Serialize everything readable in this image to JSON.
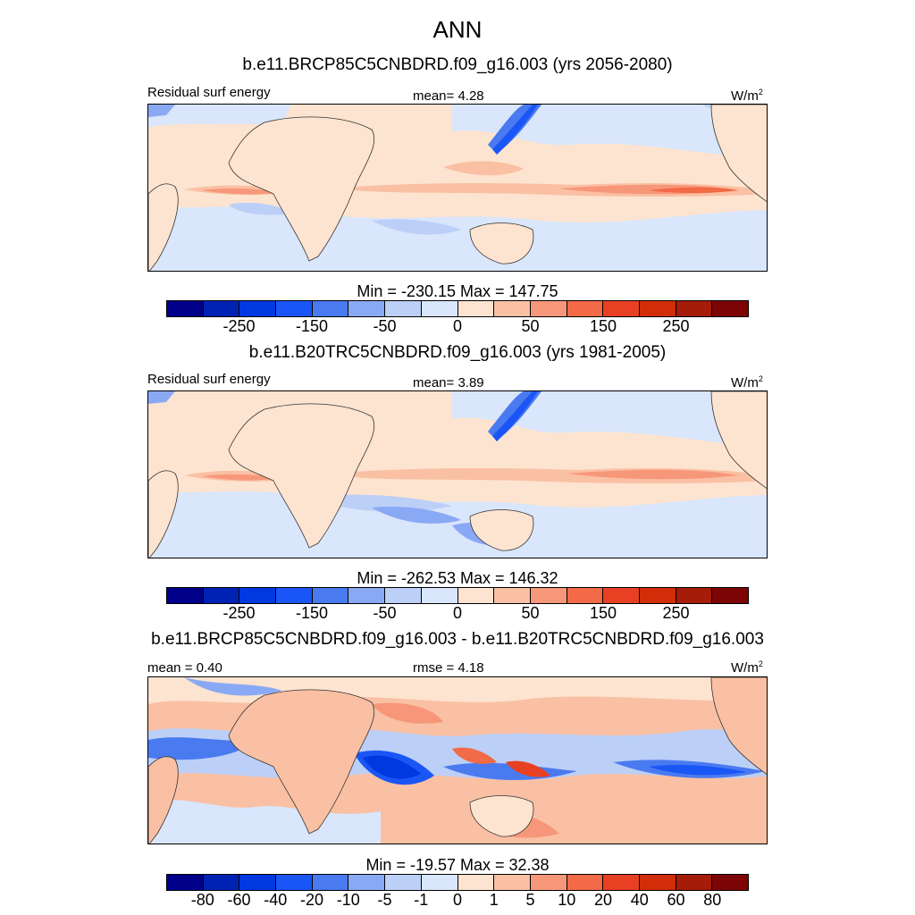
{
  "header": {
    "season": "ANN"
  },
  "panels": [
    {
      "title": "b.e11.BRCP85C5CNBDRD.f09_g16.003 (yrs 2056-2080)",
      "left_label": "Residual surf energy",
      "center_label": "mean=   4.28",
      "units_base": "W/m",
      "units_sup": "2",
      "minmax": "Min = -230.15 Max = 147.75"
    },
    {
      "title": "b.e11.B20TRC5CNBDRD.f09_g16.003 (yrs 1981-2005)",
      "left_label": "Residual surf energy",
      "center_label": "mean=   3.89",
      "units_base": "W/m",
      "units_sup": "2",
      "minmax": "Min = -262.53 Max = 146.32"
    },
    {
      "title": "b.e11.BRCP85C5CNBDRD.f09_g16.003 - b.e11.B20TRC5CNBDRD.f09_g16.003",
      "left_label": "mean =   0.40",
      "center_label": "rmse =   4.18",
      "units_base": "W/m",
      "units_sup": "2",
      "minmax": "Min = -19.57 Max =  32.38"
    }
  ],
  "colorbars": {
    "colors": [
      "#00008b",
      "#0022b4",
      "#0039e0",
      "#1a56f5",
      "#4a7af0",
      "#8aa9f5",
      "#bccff7",
      "#d9e6fb",
      "#fde4d0",
      "#fac0a4",
      "#f7977a",
      "#f26a46",
      "#e84022",
      "#d12d08",
      "#a51c08",
      "#7e0505"
    ],
    "absolute_ticks": [
      "-250",
      "-150",
      "-50",
      "0",
      "50",
      "150",
      "250"
    ],
    "diff_ticks": [
      "-80",
      "-60",
      "-40",
      "-20",
      "-10",
      "-5",
      "-1",
      "0",
      "1",
      "5",
      "10",
      "20",
      "40",
      "60",
      "80"
    ]
  }
}
